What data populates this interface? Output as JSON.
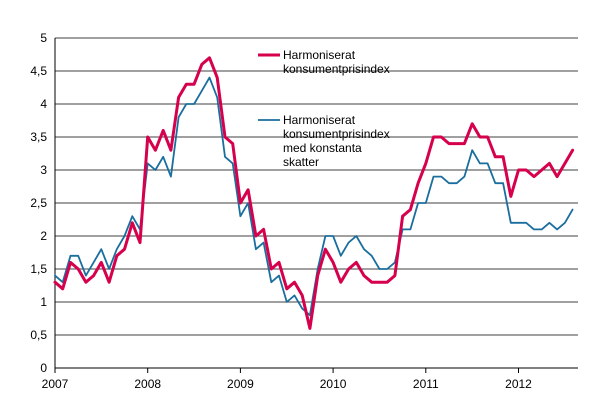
{
  "chart_data": {
    "type": "line",
    "title": "",
    "xlabel": "",
    "ylabel": "",
    "ylim": [
      0,
      5
    ],
    "y_ticks": [
      "0",
      "0,5",
      "1",
      "1,5",
      "2",
      "2,5",
      "3",
      "3,5",
      "4",
      "4,5",
      "5"
    ],
    "x_tick_labels": [
      "2007",
      "2008",
      "2009",
      "2010",
      "2011",
      "2012"
    ],
    "x_start": "2007-01",
    "frequency": "monthly",
    "grid": "horizontal",
    "legend_position": "top-center",
    "series": [
      {
        "name": "Harmoniserat konsumentprisindex",
        "color": "#d6004d",
        "values": [
          1.3,
          1.2,
          1.6,
          1.5,
          1.3,
          1.4,
          1.6,
          1.3,
          1.7,
          1.8,
          2.2,
          1.9,
          3.5,
          3.3,
          3.6,
          3.3,
          4.1,
          4.3,
          4.3,
          4.6,
          4.7,
          4.4,
          3.5,
          3.4,
          2.5,
          2.7,
          2.0,
          2.1,
          1.5,
          1.6,
          1.2,
          1.3,
          1.1,
          0.6,
          1.4,
          1.8,
          1.6,
          1.3,
          1.5,
          1.6,
          1.4,
          1.3,
          1.3,
          1.3,
          1.4,
          2.3,
          2.4,
          2.8,
          3.1,
          3.5,
          3.5,
          3.4,
          3.4,
          3.4,
          3.7,
          3.5,
          3.5,
          3.2,
          3.2,
          2.6,
          3.0,
          3.0,
          2.9,
          3.0,
          3.1,
          2.9,
          3.1,
          3.3
        ]
      },
      {
        "name": "Harmoniserat konsumentprisindex med konstanta skatter",
        "color": "#1a6e9e",
        "values": [
          1.4,
          1.3,
          1.7,
          1.7,
          1.4,
          1.6,
          1.8,
          1.5,
          1.8,
          2.0,
          2.3,
          2.1,
          3.1,
          3.0,
          3.2,
          2.9,
          3.8,
          4.0,
          4.0,
          4.2,
          4.4,
          4.1,
          3.2,
          3.1,
          2.3,
          2.5,
          1.8,
          1.9,
          1.3,
          1.4,
          1.0,
          1.1,
          0.9,
          0.8,
          1.5,
          2.0,
          2.0,
          1.7,
          1.9,
          2.0,
          1.8,
          1.7,
          1.5,
          1.5,
          1.6,
          2.1,
          2.1,
          2.5,
          2.5,
          2.9,
          2.9,
          2.8,
          2.8,
          2.9,
          3.3,
          3.1,
          3.1,
          2.8,
          2.8,
          2.2,
          2.2,
          2.2,
          2.1,
          2.1,
          2.2,
          2.1,
          2.2,
          2.4
        ]
      }
    ]
  },
  "legend": {
    "items": [
      {
        "lines": [
          "Harmoniserat",
          "konsumentprisindex"
        ],
        "color": "#d6004d"
      },
      {
        "lines": [
          "Harmoniserat",
          "konsumentprisindex",
          "med konstanta",
          "skatter"
        ],
        "color": "#1a6e9e"
      }
    ]
  }
}
